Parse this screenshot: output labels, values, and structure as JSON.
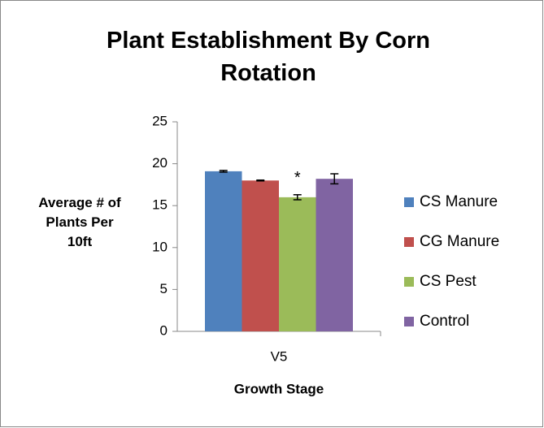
{
  "chart_data": {
    "type": "bar",
    "title": "Plant Establishment By Corn Rotation",
    "x_label": "Growth Stage",
    "y_label": "Average # of Plants Per 10ft",
    "categories": [
      "V5"
    ],
    "series": [
      {
        "name": "CS Manure",
        "color": "#4f81bd",
        "values": [
          19.1
        ],
        "errors": [
          0.1
        ]
      },
      {
        "name": "CG Manure",
        "color": "#c0504d",
        "values": [
          18.0
        ],
        "errors": [
          0.05
        ]
      },
      {
        "name": "CS Pest",
        "color": "#9bbb59",
        "values": [
          16.0
        ],
        "errors": [
          0.3
        ]
      },
      {
        "name": "Control",
        "color": "#8064a2",
        "values": [
          18.2
        ],
        "errors": [
          0.6
        ]
      }
    ],
    "annotation": "*",
    "ylim": [
      0,
      25
    ],
    "yticks": [
      0,
      5,
      10,
      15,
      20,
      25
    ],
    "grid": false,
    "legend": "right"
  }
}
